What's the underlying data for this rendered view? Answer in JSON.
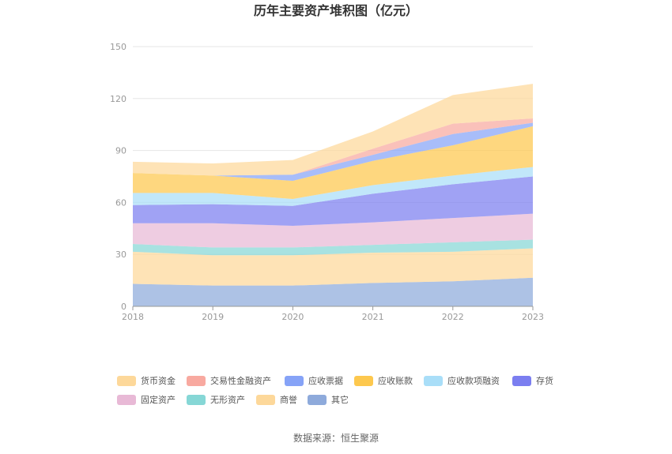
{
  "chart_data": {
    "type": "area",
    "stacked": true,
    "title": "历年主要资产堆积图（亿元）",
    "xlabel": "",
    "ylabel": "",
    "x": [
      "2018",
      "2019",
      "2020",
      "2021",
      "2022",
      "2023"
    ],
    "ylim": [
      0,
      150
    ],
    "yticks": [
      0,
      30,
      60,
      90,
      120,
      150
    ],
    "grid": true,
    "legend_position": "bottom",
    "series": [
      {
        "name": "其它",
        "color": "#8eaadb",
        "values": [
          13,
          12,
          12,
          13.5,
          14.5,
          16.5
        ]
      },
      {
        "name": "商誉",
        "color": "#fdd89a",
        "values": [
          18.5,
          17.5,
          17.5,
          17.5,
          17,
          17
        ]
      },
      {
        "name": "无形资产",
        "color": "#86d7d6",
        "values": [
          4.5,
          4.5,
          4.5,
          4.5,
          5.5,
          5
        ]
      },
      {
        "name": "固定资产",
        "color": "#e8b9d6",
        "values": [
          12,
          14,
          12.5,
          13,
          14,
          15
        ]
      },
      {
        "name": "存货",
        "color": "#7b7ef0",
        "values": [
          10.5,
          11,
          11.5,
          16.5,
          19.5,
          21.5
        ]
      },
      {
        "name": "应收款项融资",
        "color": "#a9def8",
        "values": [
          7,
          6.5,
          4,
          5,
          5,
          5.5
        ]
      },
      {
        "name": "应收账款",
        "color": "#fdc84e",
        "values": [
          11.5,
          10,
          10.5,
          14,
          17.5,
          23.5
        ]
      },
      {
        "name": "应收票据",
        "color": "#86a3f7",
        "values": [
          0,
          0,
          3.5,
          3.5,
          6.5,
          2
        ]
      },
      {
        "name": "交易性金融资产",
        "color": "#f8a9a0",
        "values": [
          0,
          0,
          0,
          3.5,
          6,
          2.5
        ]
      },
      {
        "name": "货币资金",
        "color": "#fdd89a",
        "values": [
          6.5,
          7,
          8.5,
          10,
          16.5,
          20
        ]
      }
    ],
    "legend": [
      "货币资金",
      "交易性金融资产",
      "应收票据",
      "应收账款",
      "应收款项融资",
      "存货",
      "固定资产",
      "无形资产",
      "商誉",
      "其它"
    ]
  },
  "source_text": "数据来源：恒生聚源"
}
